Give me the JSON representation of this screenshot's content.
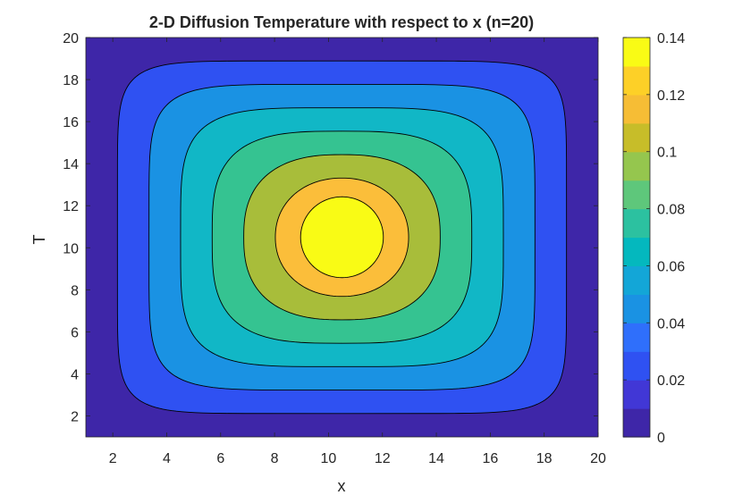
{
  "chart_data": {
    "type": "contour",
    "title": "2-D Diffusion Temperature with respect to x (n=20)",
    "xlabel": "x",
    "ylabel": "T",
    "xlim": [
      1,
      20
    ],
    "ylim": [
      1,
      20
    ],
    "xticks": [
      2,
      4,
      6,
      8,
      10,
      12,
      14,
      16,
      18,
      20
    ],
    "yticks": [
      2,
      4,
      6,
      8,
      10,
      12,
      14,
      16,
      18,
      20
    ],
    "colorbar": {
      "lim": [
        0,
        0.14
      ],
      "ticks": [
        "0",
        "0.02",
        "0.04",
        "0.06",
        "0.08",
        "0.1",
        "0.12",
        "0.14"
      ]
    },
    "levels": [
      0,
      0.02,
      0.04,
      0.06,
      0.08,
      0.1,
      0.12,
      0.14
    ],
    "peak_value": 0.14,
    "peak_location": [
      10.5,
      10.5
    ],
    "band_colors": [
      "#3e26a8",
      "#2f51f2",
      "#1a92e3",
      "#11b7c6",
      "#35c391",
      "#a8bd3a",
      "#fbbe3a",
      "#f9fb15"
    ],
    "colormap": [
      "#3e26a8",
      "#4137d6",
      "#2f51f2",
      "#2f6ffb",
      "#1a92e3",
      "#13a6d7",
      "#04b8be",
      "#2cc1a0",
      "#5ec77b",
      "#95c64e",
      "#c7bd29",
      "#f6bd35",
      "#fdd027",
      "#f9fb15"
    ]
  }
}
